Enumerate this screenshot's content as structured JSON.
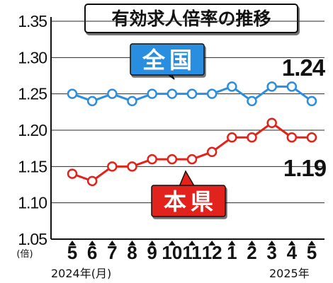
{
  "chart_data": {
    "type": "line",
    "title": "有効求人倍率の推移",
    "y_unit": "(倍)",
    "ylim": [
      1.05,
      1.35
    ],
    "y_ticks": [
      "1.35",
      "1.30",
      "1.25",
      "1.20",
      "1.15",
      "1.10",
      "1.05"
    ],
    "categories": [
      "5",
      "6",
      "7",
      "8",
      "9",
      "10",
      "11",
      "12",
      "1",
      "2",
      "3",
      "4",
      "5"
    ],
    "x_caption_start": "2024年(月)",
    "x_caption_end": "2025年",
    "grid": true,
    "series": [
      {
        "name": "全国",
        "color": "#2b8ee0",
        "values": [
          1.25,
          1.24,
          1.25,
          1.24,
          1.25,
          1.25,
          1.25,
          1.25,
          1.26,
          1.24,
          1.26,
          1.26,
          1.24
        ],
        "end_label": "1.24"
      },
      {
        "name": "本県",
        "color": "#e2231a",
        "values": [
          1.14,
          1.13,
          1.15,
          1.15,
          1.16,
          1.16,
          1.16,
          1.17,
          1.19,
          1.19,
          1.21,
          1.19,
          1.19
        ],
        "end_label": "1.19"
      }
    ]
  }
}
